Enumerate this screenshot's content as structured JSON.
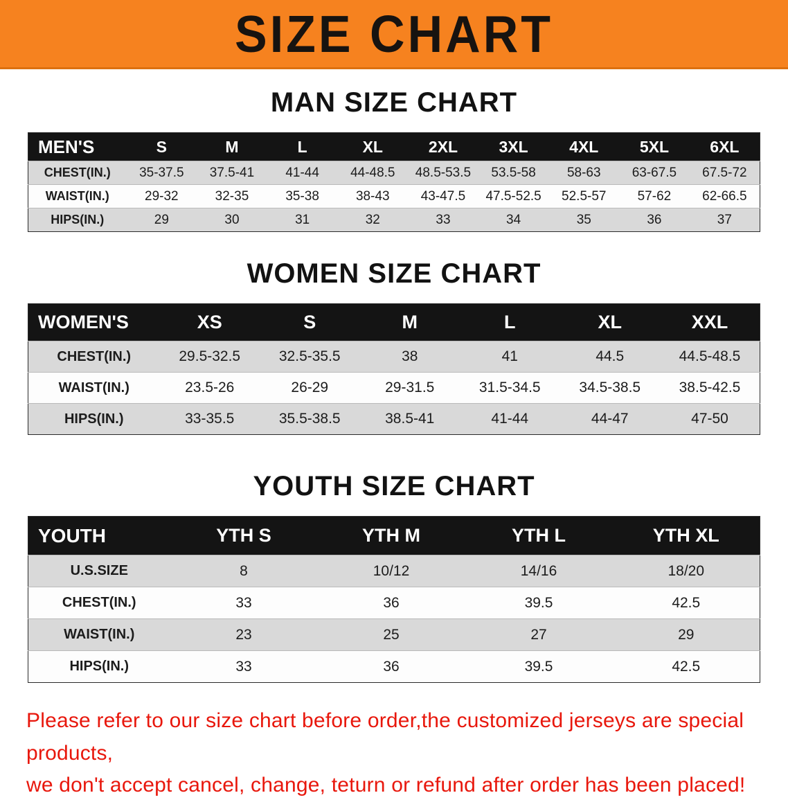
{
  "banner": {
    "title": "SIZE CHART"
  },
  "colors": {
    "banner_bg": "#F6821F",
    "table_header_bg": "#141414",
    "row_alt_gray": "#D9D9D9",
    "disclaimer_red": "#E8170C"
  },
  "men": {
    "heading": "MAN SIZE CHART",
    "table": {
      "header": [
        "MEN'S",
        "S",
        "M",
        "L",
        "XL",
        "2XL",
        "3XL",
        "4XL",
        "5XL",
        "6XL"
      ],
      "rows": [
        [
          "CHEST(IN.)",
          "35-37.5",
          "37.5-41",
          "41-44",
          "44-48.5",
          "48.5-53.5",
          "53.5-58",
          "58-63",
          "63-67.5",
          "67.5-72"
        ],
        [
          "WAIST(IN.)",
          "29-32",
          "32-35",
          "35-38",
          "38-43",
          "43-47.5",
          "47.5-52.5",
          "52.5-57",
          "57-62",
          "62-66.5"
        ],
        [
          "HIPS(IN.)",
          "29",
          "30",
          "31",
          "32",
          "33",
          "34",
          "35",
          "36",
          "37"
        ]
      ]
    }
  },
  "women": {
    "heading": "WOMEN SIZE CHART",
    "table": {
      "header": [
        "WOMEN'S",
        "XS",
        "S",
        "M",
        "L",
        "XL",
        "XXL"
      ],
      "rows": [
        [
          "CHEST(IN.)",
          "29.5-32.5",
          "32.5-35.5",
          "38",
          "41",
          "44.5",
          "44.5-48.5"
        ],
        [
          "WAIST(IN.)",
          "23.5-26",
          "26-29",
          "29-31.5",
          "31.5-34.5",
          "34.5-38.5",
          "38.5-42.5"
        ],
        [
          "HIPS(IN.)",
          "33-35.5",
          "35.5-38.5",
          "38.5-41",
          "41-44",
          "44-47",
          "47-50"
        ]
      ]
    }
  },
  "youth": {
    "heading": "YOUTH SIZE CHART",
    "table": {
      "header": [
        "YOUTH",
        "YTH S",
        "YTH M",
        "YTH L",
        "YTH XL"
      ],
      "rows": [
        [
          "U.S.SIZE",
          "8",
          "10/12",
          "14/16",
          "18/20"
        ],
        [
          "CHEST(IN.)",
          "33",
          "36",
          "39.5",
          "42.5"
        ],
        [
          "WAIST(IN.)",
          "23",
          "25",
          "27",
          "29"
        ],
        [
          "HIPS(IN.)",
          "33",
          "36",
          "39.5",
          "42.5"
        ]
      ]
    }
  },
  "disclaimer": {
    "line1": "Please refer to our size chart before order,the customized jerseys are special products,",
    "line2": "we don't accept cancel, change, teturn or refund after order has been placed!"
  }
}
